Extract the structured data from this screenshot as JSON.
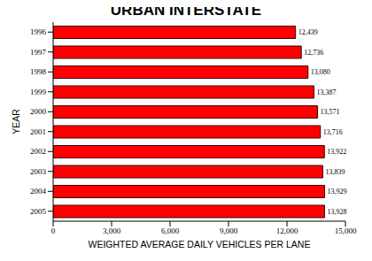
{
  "chart_data": {
    "type": "bar",
    "title": "URBAN INTERSTATE",
    "orientation": "horizontal",
    "x_label": "WEIGHTED AVERAGE DAILY VEHICLES PER LANE",
    "y_label": "YEAR",
    "categories": [
      "1996",
      "1997",
      "1998",
      "1999",
      "2000",
      "2001",
      "2002",
      "2003",
      "2004",
      "2005"
    ],
    "values": [
      12439,
      12736,
      13080,
      13387,
      13571,
      13716,
      13922,
      13839,
      13929,
      13928
    ],
    "value_labels": [
      "12,439",
      "12,736",
      "13,080",
      "13,387",
      "13,571",
      "13,716",
      "13,922",
      "13,839",
      "13,929",
      "13,928"
    ],
    "data_labels": true,
    "color": "#ff0000",
    "xlim": [
      0,
      15000
    ],
    "xticks": [
      0,
      {
        "value": 3000,
        "label": "3,000"
      },
      {
        "value": 6000,
        "label": "6,000"
      },
      {
        "value": 9000,
        "label": "9,000"
      },
      {
        "value": 12000,
        "label": "12,000"
      },
      {
        "value": 15000,
        "label": "15,000"
      }
    ],
    "grid": false
  }
}
